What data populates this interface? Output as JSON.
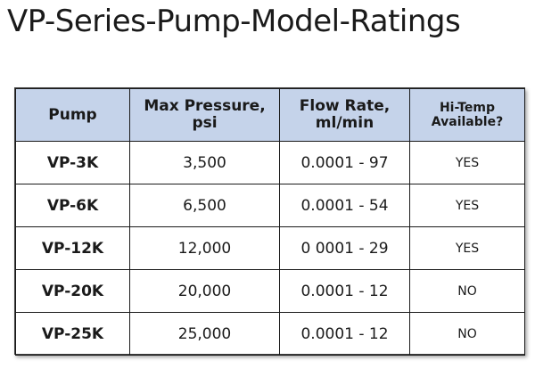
{
  "title": "VP-Series-Pump-Model-Ratings",
  "table": {
    "headers": [
      {
        "lines": [
          "Pump"
        ]
      },
      {
        "lines": [
          "Max Pressure,",
          "psi"
        ]
      },
      {
        "lines": [
          "Flow Rate,",
          "ml/min"
        ]
      },
      {
        "lines": [
          "Hi-Temp",
          "Available?"
        ]
      }
    ],
    "rows": [
      {
        "pump": "VP-3K",
        "max_pressure": "3,500",
        "flow_rate": "0.0001 - 97",
        "hi_temp": "YES"
      },
      {
        "pump": "VP-6K",
        "max_pressure": "6,500",
        "flow_rate": "0.0001 - 54",
        "hi_temp": "YES"
      },
      {
        "pump": "VP-12K",
        "max_pressure": "12,000",
        "flow_rate": "0 0001 - 29",
        "hi_temp": "YES"
      },
      {
        "pump": "VP-20K",
        "max_pressure": "20,000",
        "flow_rate": "0.0001 - 12",
        "hi_temp": "NO"
      },
      {
        "pump": "VP-25K",
        "max_pressure": "25,000",
        "flow_rate": "0.0001 - 12",
        "hi_temp": "NO"
      }
    ],
    "header_fill": "#c5d3ea",
    "border_color": "#1a1a1a"
  }
}
